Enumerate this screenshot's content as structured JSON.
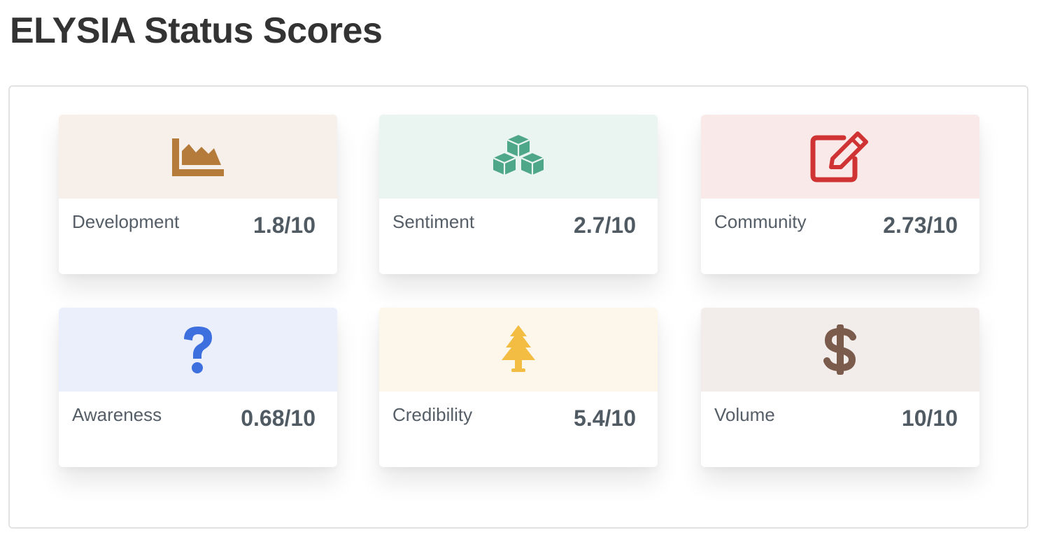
{
  "page": {
    "title": "ELYSIA Status Scores"
  },
  "cards": [
    {
      "label": "Development",
      "value": "1.8/10",
      "icon": "area-chart-icon",
      "bg_color": "#f7f0ea",
      "icon_color": "#b57b3a"
    },
    {
      "label": "Sentiment",
      "value": "2.7/10",
      "icon": "cubes-icon",
      "bg_color": "#eaf4f0",
      "icon_color": "#4fa78a"
    },
    {
      "label": "Community",
      "value": "2.73/10",
      "icon": "edit-icon",
      "bg_color": "#f9e9e9",
      "icon_color": "#cf3333"
    },
    {
      "label": "Awareness",
      "value": "0.68/10",
      "icon": "question-icon",
      "bg_color": "#ebeffb",
      "icon_color": "#3d6fde"
    },
    {
      "label": "Credibility",
      "value": "5.4/10",
      "icon": "tree-icon",
      "bg_color": "#fdf6ea",
      "icon_color": "#f2bd42"
    },
    {
      "label": "Volume",
      "value": "10/10",
      "icon": "dollar-icon",
      "bg_color": "#f2eceb",
      "icon_color": "#7a5b4c"
    }
  ]
}
